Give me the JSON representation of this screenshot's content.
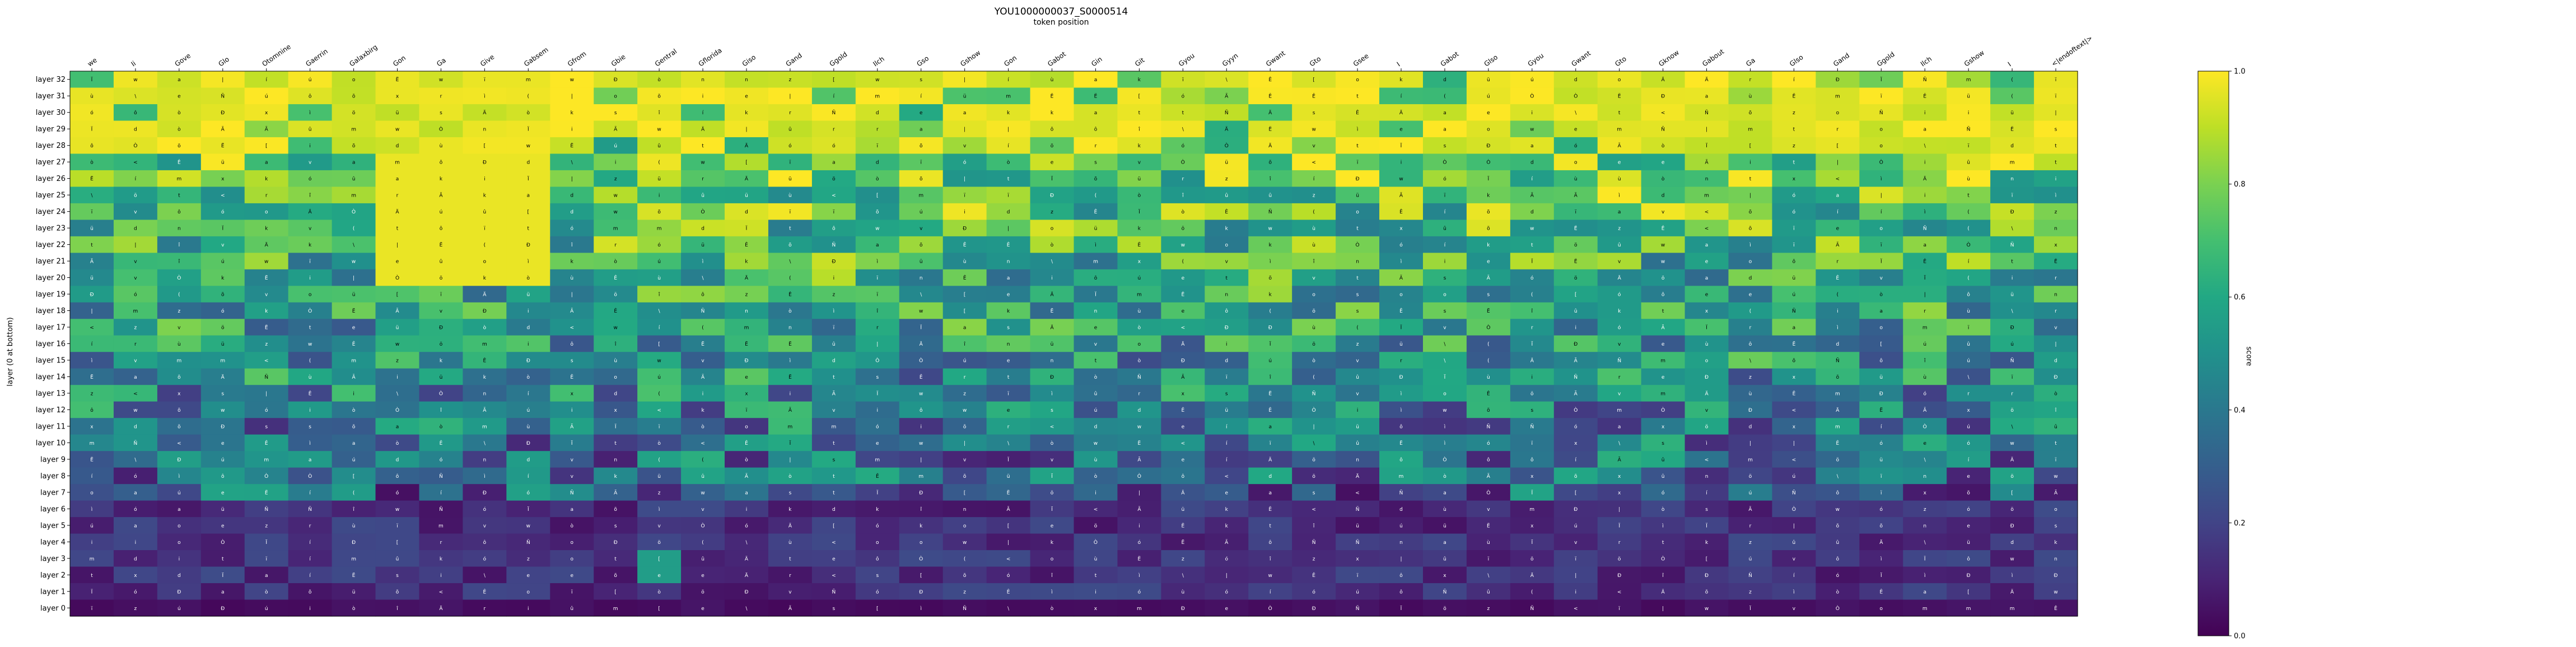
{
  "chart_data": {
    "type": "heatmap",
    "title": "YOU1000000037_S0000514",
    "subtitle": "token position",
    "ylabel": "layer (0 at bottom)",
    "colorbar_label": "score",
    "colorbar_ticks": [
      "0.0",
      "0.2",
      "0.4",
      "0.6",
      "0.8",
      "1.0"
    ],
    "vmin": 0.0,
    "vmax": 1.0,
    "colormap": "viridis",
    "tokens": [
      "we",
      "Ii",
      "Gove",
      "Glo",
      "Otomnine",
      "Gaerrin",
      "Galaxbirg",
      "Gon",
      "Ga",
      "Give",
      "Gabsem",
      "Gfrom",
      "Gbie",
      "Gentral",
      "Gflorida",
      "Giso",
      "Gand",
      "Ggold",
      "Ilch",
      "Gso",
      "Gshow",
      "Gon",
      "Gabot",
      "Gin",
      "Git",
      "Gyou",
      "Gyyn",
      "Gwant",
      "Gto",
      "Gsee",
      "I",
      "Gabot",
      "Glso",
      "Gyou",
      "Gwant",
      "Gto",
      "Gknow",
      "Gabout",
      "Ga",
      "Glso",
      "Gand",
      "Ggold",
      "Ilch",
      "Gshow",
      "I",
      "<|endoftext|>"
    ],
    "layers": [
      "layer 32",
      "layer 31",
      "layer 30",
      "layer 29",
      "layer 28",
      "layer 27",
      "layer 26",
      "layer 25",
      "layer 24",
      "layer 23",
      "layer 22",
      "layer 21",
      "layer 20",
      "layer 19",
      "layer 18",
      "layer 17",
      "layer 16",
      "layer 15",
      "layer 14",
      "layer 13",
      "layer 12",
      "layer 11",
      "layer 10",
      "layer 9",
      "layer 8",
      "layer 7",
      "layer 6",
      "layer 5",
      "layer 4",
      "layer 3",
      "layer 2",
      "layer 1",
      "layer 0"
    ],
    "cell_label_set": [
      "Ä",
      "Ê",
      "Ï",
      "Ë",
      "Ã",
      "ì",
      "í",
      "î",
      "ï",
      "ó",
      "ò",
      "ô",
      "õ",
      "ö",
      "ú",
      "ù",
      "û",
      "ü",
      "e",
      "o",
      "a",
      "i",
      "k",
      "r",
      "s",
      "n",
      "t",
      "m",
      "w",
      "v",
      "x",
      "z",
      "d",
      "(",
      "<",
      "[",
      "\\",
      "|",
      "Ð",
      "Ñ",
      "Ò"
    ]
  }
}
